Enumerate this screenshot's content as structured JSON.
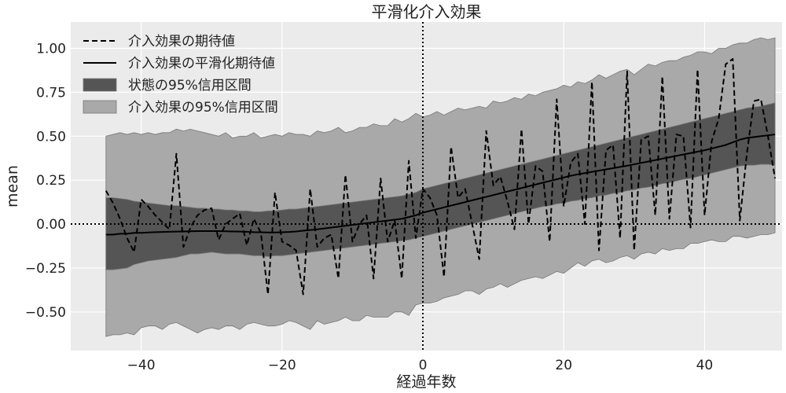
{
  "chart_data": {
    "type": "line",
    "title": "平滑化介入効果",
    "xlabel": "経過年数",
    "ylabel": "mean",
    "xlim": [
      -50,
      51
    ],
    "ylim": [
      -0.72,
      1.15
    ],
    "xticks": [
      -40,
      -20,
      0,
      20,
      40
    ],
    "xtick_labels": [
      "−40",
      "−20",
      "0",
      "20",
      "40"
    ],
    "yticks": [
      -0.5,
      -0.25,
      0.0,
      0.25,
      0.5,
      0.75,
      1.0
    ],
    "ytick_labels": [
      "−0.50",
      "−0.25",
      "0.00",
      "0.25",
      "0.50",
      "0.75",
      "1.00"
    ],
    "grid": true,
    "background": "#ebebeb",
    "legend_position": "top-left",
    "reference_lines": [
      {
        "orientation": "vertical",
        "value": 0,
        "style": "dotted",
        "color": "#000000"
      },
      {
        "orientation": "horizontal",
        "value": 0,
        "style": "dotted",
        "color": "#000000"
      }
    ],
    "legend": [
      {
        "label": "介入効果の期待値",
        "kind": "line",
        "style": "dashed",
        "color": "#000000"
      },
      {
        "label": "介入効果の平滑化期待値",
        "kind": "line",
        "style": "solid",
        "color": "#000000"
      },
      {
        "label": "状態の95%信用区間",
        "kind": "band",
        "color": "#555555"
      },
      {
        "label": "介入効果の95%信用区間",
        "kind": "band",
        "color": "#a9a9a9"
      }
    ],
    "x": [
      -45,
      -44,
      -43,
      -42,
      -41,
      -40,
      -39,
      -38,
      -37,
      -36,
      -35,
      -34,
      -33,
      -32,
      -31,
      -30,
      -29,
      -28,
      -27,
      -26,
      -25,
      -24,
      -23,
      -22,
      -21,
      -20,
      -19,
      -18,
      -17,
      -16,
      -15,
      -14,
      -13,
      -12,
      -11,
      -10,
      -9,
      -8,
      -7,
      -6,
      -5,
      -4,
      -3,
      -2,
      -1,
      0,
      1,
      2,
      3,
      4,
      5,
      6,
      7,
      8,
      9,
      10,
      11,
      12,
      13,
      14,
      15,
      16,
      17,
      18,
      19,
      20,
      21,
      22,
      23,
      24,
      25,
      26,
      27,
      28,
      29,
      30,
      31,
      32,
      33,
      34,
      35,
      36,
      37,
      38,
      39,
      40,
      41,
      42,
      43,
      44,
      45,
      46,
      47,
      48,
      49,
      50
    ],
    "series": [
      {
        "name": "介入効果の期待値",
        "style": "dashed",
        "values": [
          0.19,
          0.12,
          0.03,
          -0.08,
          -0.16,
          0.14,
          0.1,
          0.05,
          0.01,
          -0.03,
          0.4,
          -0.13,
          -0.02,
          0.05,
          0.08,
          0.09,
          -0.09,
          0.0,
          0.03,
          0.06,
          -0.12,
          0.03,
          -0.05,
          -0.4,
          0.18,
          -0.1,
          -0.12,
          -0.15,
          -0.4,
          0.2,
          -0.13,
          -0.08,
          -0.06,
          -0.31,
          0.28,
          -0.1,
          0.0,
          0.05,
          -0.31,
          0.26,
          -0.1,
          0.02,
          -0.31,
          0.36,
          -0.08,
          0.2,
          0.15,
          0.05,
          -0.3,
          0.44,
          0.15,
          0.2,
          0.0,
          -0.2,
          0.53,
          0.22,
          0.27,
          0.13,
          -0.03,
          0.54,
          0.0,
          0.33,
          0.3,
          -0.1,
          0.71,
          0.1,
          0.35,
          0.4,
          0.0,
          0.81,
          -0.15,
          0.42,
          0.45,
          -0.08,
          0.87,
          -0.15,
          0.48,
          0.5,
          0.05,
          0.84,
          0.03,
          0.51,
          0.5,
          -0.02,
          0.88,
          0.05,
          0.47,
          0.6,
          0.91,
          0.94,
          0.02,
          0.4,
          0.7,
          0.71,
          0.5,
          0.26
        ]
      },
      {
        "name": "介入効果の平滑化期待値",
        "style": "solid",
        "values": [
          -0.06,
          -0.06,
          -0.055,
          -0.055,
          -0.05,
          -0.05,
          -0.048,
          -0.046,
          -0.045,
          -0.044,
          -0.043,
          -0.042,
          -0.041,
          -0.04,
          -0.04,
          -0.04,
          -0.04,
          -0.041,
          -0.042,
          -0.043,
          -0.044,
          -0.046,
          -0.047,
          -0.048,
          -0.048,
          -0.047,
          -0.045,
          -0.042,
          -0.038,
          -0.034,
          -0.03,
          -0.025,
          -0.02,
          -0.015,
          -0.01,
          -0.005,
          0.0,
          0.005,
          0.01,
          0.015,
          0.02,
          0.025,
          0.03,
          0.04,
          0.05,
          0.065,
          0.075,
          0.085,
          0.095,
          0.105,
          0.115,
          0.125,
          0.135,
          0.145,
          0.155,
          0.165,
          0.175,
          0.185,
          0.195,
          0.205,
          0.215,
          0.225,
          0.235,
          0.245,
          0.255,
          0.265,
          0.275,
          0.283,
          0.29,
          0.297,
          0.304,
          0.311,
          0.318,
          0.325,
          0.332,
          0.34,
          0.348,
          0.356,
          0.364,
          0.372,
          0.38,
          0.388,
          0.396,
          0.404,
          0.412,
          0.42,
          0.43,
          0.44,
          0.45,
          0.465,
          0.48,
          0.49,
          0.495,
          0.5,
          0.505,
          0.51
        ]
      }
    ],
    "bands": [
      {
        "name": "状態の95%信用区間",
        "lower": [
          -0.26,
          -0.26,
          -0.255,
          -0.25,
          -0.23,
          -0.22,
          -0.21,
          -0.205,
          -0.2,
          -0.195,
          -0.19,
          -0.18,
          -0.17,
          -0.17,
          -0.165,
          -0.16,
          -0.165,
          -0.17,
          -0.17,
          -0.17,
          -0.175,
          -0.18,
          -0.18,
          -0.185,
          -0.18,
          -0.18,
          -0.175,
          -0.17,
          -0.165,
          -0.16,
          -0.155,
          -0.15,
          -0.145,
          -0.14,
          -0.135,
          -0.13,
          -0.125,
          -0.12,
          -0.115,
          -0.11,
          -0.105,
          -0.1,
          -0.095,
          -0.09,
          -0.08,
          -0.07,
          -0.06,
          -0.05,
          -0.04,
          -0.03,
          -0.02,
          -0.01,
          0.0,
          0.01,
          0.02,
          0.03,
          0.04,
          0.05,
          0.06,
          0.07,
          0.08,
          0.09,
          0.1,
          0.105,
          0.115,
          0.12,
          0.13,
          0.135,
          0.145,
          0.15,
          0.16,
          0.165,
          0.175,
          0.18,
          0.19,
          0.195,
          0.205,
          0.21,
          0.22,
          0.23,
          0.235,
          0.245,
          0.255,
          0.26,
          0.27,
          0.28,
          0.29,
          0.3,
          0.31,
          0.32,
          0.33,
          0.335,
          0.335,
          0.34,
          0.34,
          0.335
        ],
        "upper": [
          0.15,
          0.15,
          0.145,
          0.14,
          0.13,
          0.125,
          0.12,
          0.115,
          0.11,
          0.105,
          0.105,
          0.1,
          0.095,
          0.09,
          0.09,
          0.085,
          0.085,
          0.08,
          0.08,
          0.075,
          0.075,
          0.07,
          0.07,
          0.075,
          0.075,
          0.08,
          0.085,
          0.085,
          0.09,
          0.095,
          0.1,
          0.105,
          0.11,
          0.115,
          0.12,
          0.125,
          0.13,
          0.135,
          0.14,
          0.145,
          0.15,
          0.155,
          0.16,
          0.17,
          0.18,
          0.2,
          0.21,
          0.22,
          0.23,
          0.24,
          0.25,
          0.26,
          0.27,
          0.28,
          0.29,
          0.3,
          0.31,
          0.32,
          0.33,
          0.34,
          0.35,
          0.36,
          0.37,
          0.38,
          0.39,
          0.4,
          0.41,
          0.42,
          0.43,
          0.44,
          0.45,
          0.46,
          0.47,
          0.48,
          0.49,
          0.5,
          0.51,
          0.52,
          0.53,
          0.54,
          0.55,
          0.56,
          0.57,
          0.58,
          0.59,
          0.6,
          0.61,
          0.62,
          0.63,
          0.64,
          0.65,
          0.66,
          0.665,
          0.67,
          0.68,
          0.69
        ]
      },
      {
        "name": "介入効果の95%信用区間",
        "lower": [
          -0.64,
          -0.63,
          -0.63,
          -0.62,
          -0.63,
          -0.59,
          -0.58,
          -0.58,
          -0.6,
          -0.57,
          -0.56,
          -0.58,
          -0.6,
          -0.62,
          -0.6,
          -0.59,
          -0.6,
          -0.58,
          -0.58,
          -0.6,
          -0.57,
          -0.56,
          -0.57,
          -0.58,
          -0.58,
          -0.57,
          -0.55,
          -0.56,
          -0.58,
          -0.6,
          -0.55,
          -0.57,
          -0.56,
          -0.55,
          -0.53,
          -0.55,
          -0.55,
          -0.52,
          -0.53,
          -0.53,
          -0.53,
          -0.5,
          -0.5,
          -0.52,
          -0.46,
          -0.45,
          -0.45,
          -0.44,
          -0.42,
          -0.41,
          -0.4,
          -0.38,
          -0.38,
          -0.4,
          -0.37,
          -0.36,
          -0.34,
          -0.36,
          -0.34,
          -0.32,
          -0.31,
          -0.3,
          -0.31,
          -0.29,
          -0.27,
          -0.28,
          -0.25,
          -0.22,
          -0.24,
          -0.21,
          -0.2,
          -0.22,
          -0.21,
          -0.19,
          -0.18,
          -0.2,
          -0.17,
          -0.16,
          -0.17,
          -0.14,
          -0.15,
          -0.14,
          -0.14,
          -0.11,
          -0.11,
          -0.1,
          -0.09,
          -0.1,
          -0.1,
          -0.07,
          -0.07,
          -0.08,
          -0.07,
          -0.06,
          -0.06,
          -0.05
        ],
        "upper": [
          0.5,
          0.51,
          0.52,
          0.51,
          0.52,
          0.51,
          0.52,
          0.51,
          0.52,
          0.52,
          0.54,
          0.53,
          0.54,
          0.53,
          0.52,
          0.51,
          0.5,
          0.52,
          0.49,
          0.5,
          0.5,
          0.52,
          0.49,
          0.5,
          0.51,
          0.5,
          0.52,
          0.51,
          0.51,
          0.5,
          0.53,
          0.52,
          0.53,
          0.55,
          0.52,
          0.53,
          0.55,
          0.55,
          0.57,
          0.56,
          0.56,
          0.6,
          0.58,
          0.6,
          0.63,
          0.61,
          0.62,
          0.64,
          0.62,
          0.64,
          0.66,
          0.65,
          0.66,
          0.67,
          0.66,
          0.7,
          0.69,
          0.7,
          0.72,
          0.71,
          0.74,
          0.73,
          0.75,
          0.76,
          0.77,
          0.79,
          0.78,
          0.81,
          0.8,
          0.82,
          0.85,
          0.83,
          0.85,
          0.87,
          0.88,
          0.85,
          0.88,
          0.91,
          0.9,
          0.92,
          0.93,
          0.93,
          0.95,
          0.96,
          0.98,
          0.98,
          0.97,
          1.0,
          1.0,
          1.02,
          1.03,
          1.03,
          1.05,
          1.06,
          1.05,
          1.06
        ]
      }
    ]
  }
}
